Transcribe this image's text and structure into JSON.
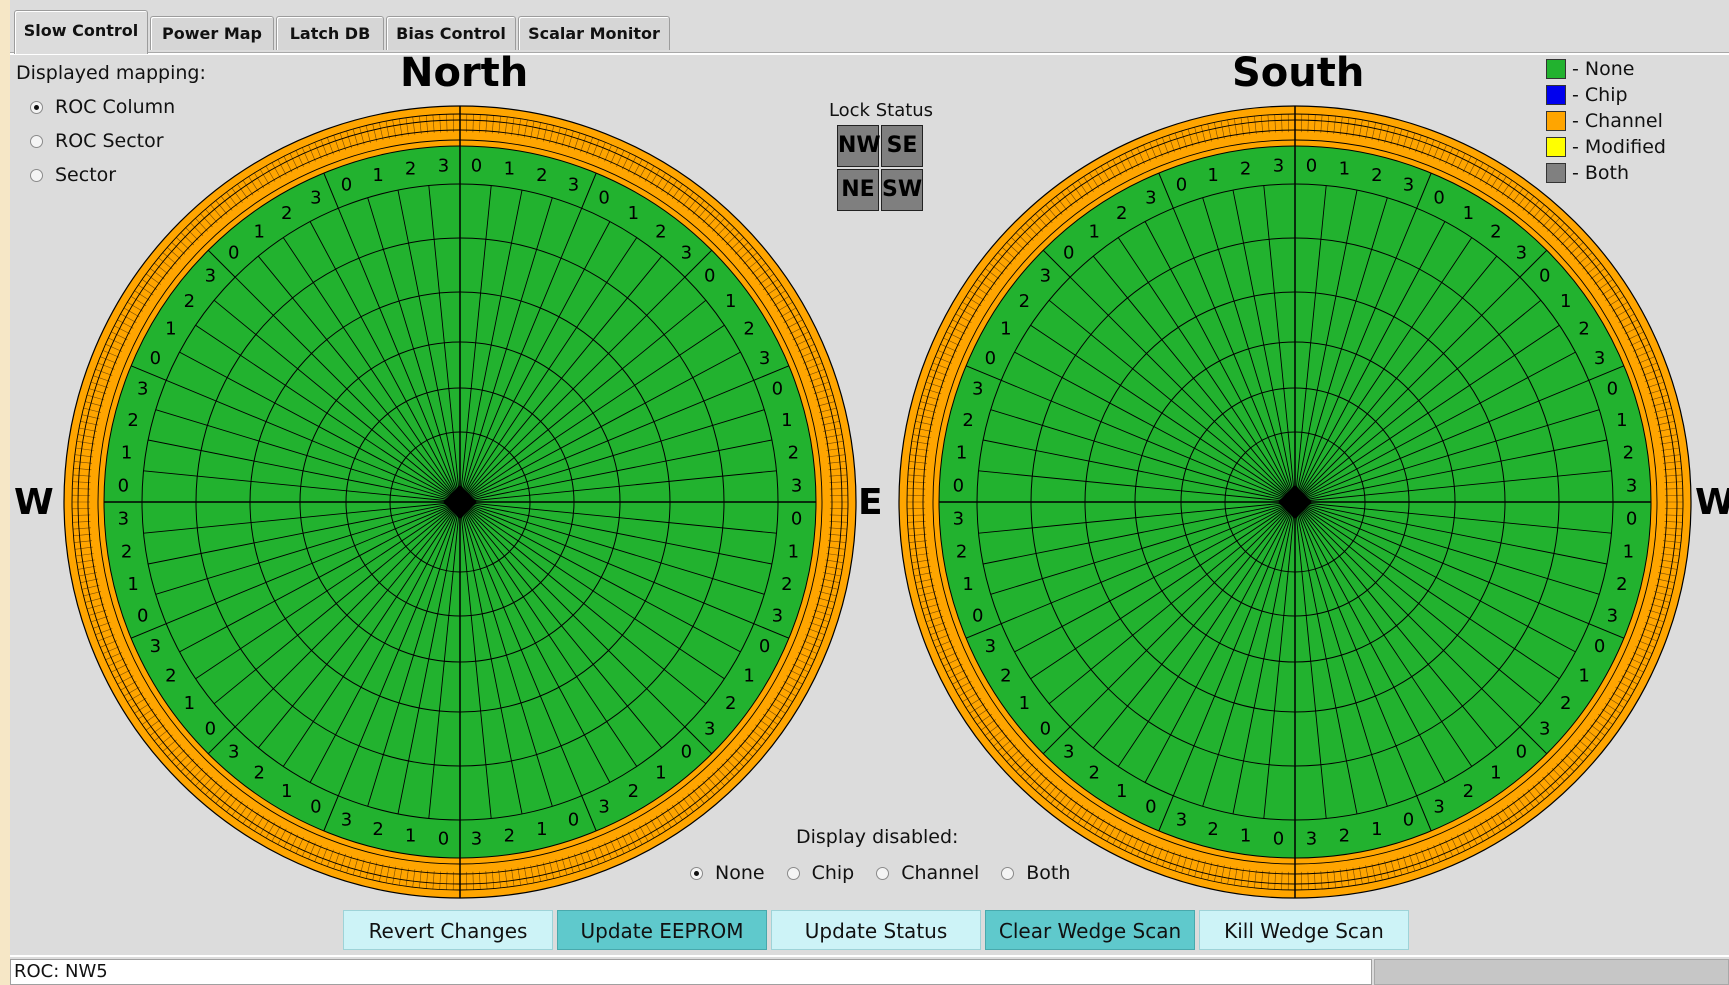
{
  "tabs": [
    "Slow Control",
    "Power Map",
    "Latch DB",
    "Bias Control",
    "Scalar Monitor"
  ],
  "active_tab": 0,
  "mapping": {
    "label": "Displayed mapping:",
    "options": [
      "ROC Column",
      "ROC Sector",
      "Sector"
    ],
    "selected": 0
  },
  "maps": {
    "north_title": "North",
    "south_title": "South",
    "compass_left": "W",
    "compass_center": "E",
    "compass_right": "W",
    "ring_digits": [
      "0",
      "1",
      "2",
      "3"
    ]
  },
  "lock_status": {
    "title": "Lock Status",
    "cells": [
      "NW",
      "SE",
      "NE",
      "SW"
    ]
  },
  "legend": [
    {
      "label": "- None",
      "color": "#22b22f"
    },
    {
      "label": "- Chip",
      "color": "#0000ee"
    },
    {
      "label": "- Channel",
      "color": "#ffa500"
    },
    {
      "label": "- Modified",
      "color": "#ffff00"
    },
    {
      "label": "- Both",
      "color": "#808080"
    }
  ],
  "display_disabled": {
    "label": "Display disabled:",
    "options": [
      "None",
      "Chip",
      "Channel",
      "Both"
    ],
    "selected": 0
  },
  "buttons": [
    {
      "label": "Revert Changes",
      "style": "light"
    },
    {
      "label": "Update EEPROM",
      "style": "dark"
    },
    {
      "label": "Update Status",
      "style": "light"
    },
    {
      "label": "Clear Wedge Scan",
      "style": "dark"
    },
    {
      "label": "Kill Wedge Scan",
      "style": "light"
    }
  ],
  "status": {
    "text": "ROC: NW5"
  },
  "colors": {
    "green": "#22b22f",
    "orange": "#ffa500"
  }
}
